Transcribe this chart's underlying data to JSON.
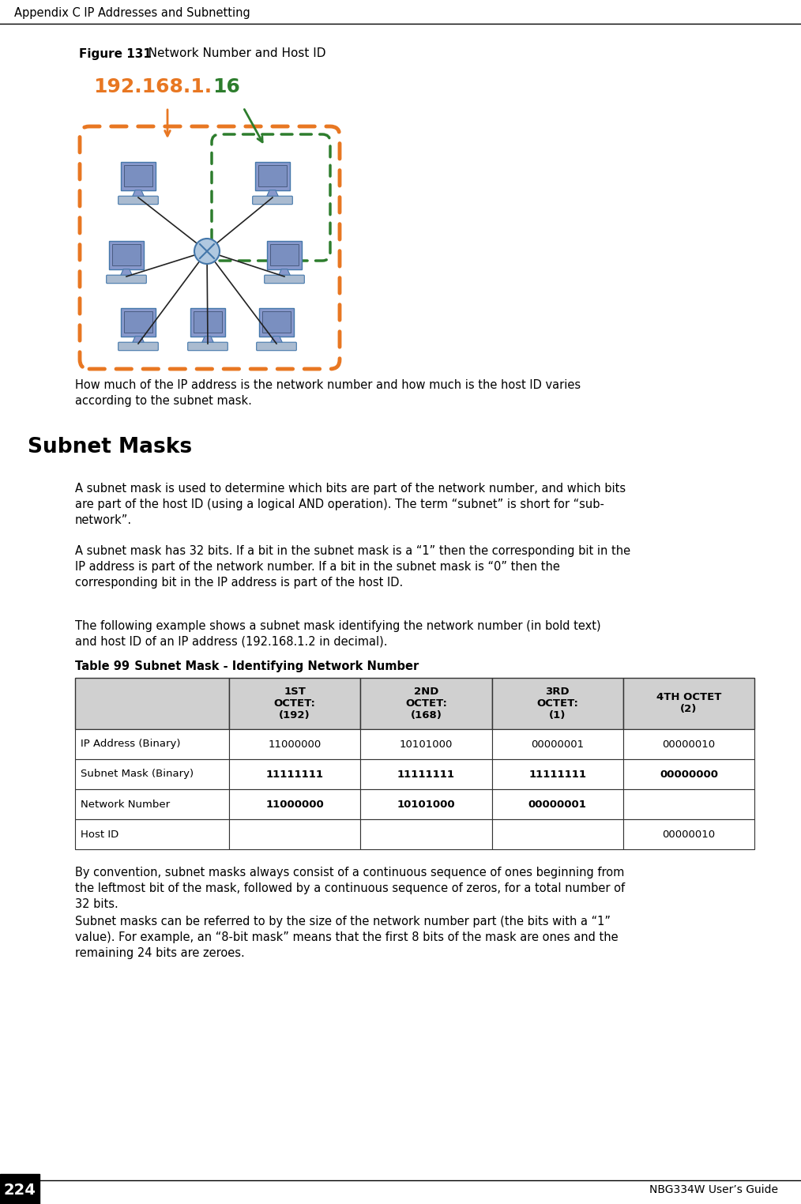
{
  "page_title": "Appendix C IP Addresses and Subnetting",
  "page_number": "224",
  "right_footer": "NBG334W User’s Guide",
  "figure_label": "Figure 131",
  "figure_title": "   Network Number and Host ID",
  "ip_orange": "192.168.1.",
  "ip_green": "16",
  "paragraph1": "How much of the IP address is the network number and how much is the host ID varies\naccording to the subnet mask.",
  "section_title": "Subnet Masks",
  "para2": "A subnet mask is used to determine which bits are part of the network number, and which bits\nare part of the host ID (using a logical AND operation). The term “subnet” is short for “sub-\nnetwork”.",
  "para3": "A subnet mask has 32 bits. If a bit in the subnet mask is a “1” then the corresponding bit in the\nIP address is part of the network number. If a bit in the subnet mask is “0” then the\ncorresponding bit in the IP address is part of the host ID.",
  "para4": "The following example shows a subnet mask identifying the network number (in bold text)\nand host ID of an IP address (192.168.1.2 in decimal).",
  "table_label": "Table 99",
  "table_title": "   Subnet Mask - Identifying Network Number",
  "table_col_headers": [
    "1ST\nOCTET:\n(192)",
    "2ND\nOCTET:\n(168)",
    "3RD\nOCTET:\n(1)",
    "4TH OCTET\n(2)"
  ],
  "table_rows": [
    [
      "IP Address (Binary)",
      "11000000",
      "10101000",
      "00000001",
      "00000010"
    ],
    [
      "Subnet Mask (Binary)",
      "11111111",
      "11111111",
      "11111111",
      "00000000"
    ],
    [
      "Network Number",
      "11000000",
      "10101000",
      "00000001",
      ""
    ],
    [
      "Host ID",
      "",
      "",
      "",
      "00000010"
    ]
  ],
  "para5": "By convention, subnet masks always consist of a continuous sequence of ones beginning from\nthe leftmost bit of the mask, followed by a continuous sequence of zeros, for a total number of\n32 bits.",
  "para6": "Subnet masks can be referred to by the size of the network number part (the bits with a “1”\nvalue). For example, an “8-bit mask” means that the first 8 bits of the mask are ones and the\nremaining 24 bits are zeroes.",
  "bg_color": "#ffffff",
  "orange_color": "#E87722",
  "green_color": "#2D7D2D",
  "black": "#000000",
  "table_hdr_bg": "#D0D0D0",
  "table_white_bg": "#FFFFFF"
}
